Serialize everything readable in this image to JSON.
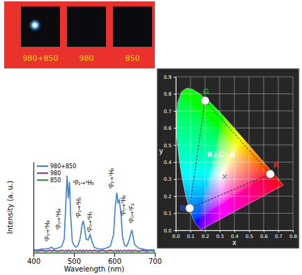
{
  "photo_panel": {
    "labels": [
      "980+850",
      "980",
      "850"
    ],
    "glow": [
      true,
      false,
      false
    ]
  },
  "chart_data": [
    {
      "type": "line",
      "x_label": "Wavelength (nm)",
      "y_label": "Intensity (a. u.)",
      "x": [
        400,
        410,
        420,
        430,
        440,
        445,
        450,
        460,
        470,
        476,
        480,
        483,
        486,
        489,
        492,
        496,
        500,
        505,
        510,
        515,
        520,
        523,
        526,
        530,
        535,
        540,
        545,
        550,
        560,
        570,
        580,
        590,
        598,
        602,
        606,
        609,
        612,
        616,
        620,
        625,
        630,
        635,
        640,
        643,
        646,
        650,
        660,
        670,
        680,
        690,
        700
      ],
      "series": [
        {
          "name": "980+850",
          "color": "#3f7fcf",
          "values": [
            0.03,
            0.03,
            0.04,
            0.04,
            0.05,
            0.06,
            0.04,
            0.05,
            0.07,
            0.15,
            0.55,
            0.85,
            0.6,
            0.78,
            0.4,
            0.12,
            0.08,
            0.06,
            0.08,
            0.15,
            0.3,
            0.35,
            0.28,
            0.15,
            0.14,
            0.2,
            0.12,
            0.06,
            0.04,
            0.04,
            0.05,
            0.07,
            0.2,
            0.5,
            0.66,
            0.55,
            0.58,
            0.45,
            0.18,
            0.08,
            0.07,
            0.12,
            0.2,
            0.25,
            0.18,
            0.09,
            0.05,
            0.04,
            0.03,
            0.03,
            0.03
          ]
        },
        {
          "name": "980",
          "color": "#8e3b8e",
          "values": [
            0.03,
            0.02,
            0.03,
            0.02,
            0.03,
            0.02,
            0.03,
            0.02,
            0.03,
            0.02,
            0.03,
            0.02,
            0.03,
            0.03,
            0.02,
            0.03,
            0.02,
            0.03,
            0.02,
            0.03,
            0.02,
            0.03,
            0.02,
            0.03,
            0.02,
            0.03,
            0.02,
            0.03,
            0.02,
            0.03,
            0.02,
            0.03,
            0.02,
            0.03,
            0.02,
            0.03,
            0.02,
            0.03,
            0.02,
            0.03,
            0.02,
            0.03,
            0.02,
            0.03,
            0.02,
            0.03,
            0.02,
            0.03,
            0.02,
            0.03,
            0.02
          ]
        },
        {
          "name": "850",
          "color": "#2f8f3a",
          "values": [
            0.02,
            0.01,
            0.02,
            0.01,
            0.02,
            0.01,
            0.02,
            0.01,
            0.02,
            0.01,
            0.02,
            0.01,
            0.02,
            0.02,
            0.01,
            0.02,
            0.01,
            0.02,
            0.01,
            0.02,
            0.01,
            0.02,
            0.01,
            0.02,
            0.01,
            0.02,
            0.01,
            0.02,
            0.01,
            0.02,
            0.01,
            0.02,
            0.01,
            0.02,
            0.01,
            0.02,
            0.01,
            0.02,
            0.01,
            0.02,
            0.01,
            0.02,
            0.01,
            0.02,
            0.01,
            0.02,
            0.01,
            0.02,
            0.01,
            0.02,
            0.01
          ]
        }
      ],
      "xlim": [
        400,
        700
      ],
      "xticks": [
        400,
        500,
        600,
        700
      ],
      "ylim": [
        0,
        1
      ],
      "tick_labels": "x",
      "legend": "upper left",
      "annotations": [
        {
          "text": "³P₁→³H₄",
          "x": 440,
          "y": 0.12
        },
        {
          "text": "³P₀→³H₄",
          "x": 468,
          "y": 0.25
        },
        {
          "text": "³P₂→³H₅",
          "x": 497,
          "y": 0.75
        },
        {
          "text": "³P₁→³H₅",
          "x": 518,
          "y": 0.38
        },
        {
          "text": "³P₀→³H₅",
          "x": 545,
          "y": 0.22
        },
        {
          "text": "³P₁→³H₆",
          "x": 598,
          "y": 0.7
        },
        {
          "text": "³P₀→³H₆",
          "x": 628,
          "y": 0.4
        },
        {
          "text": "³P₀→³F₂",
          "x": 648,
          "y": 0.32
        }
      ]
    },
    {
      "type": "scatter",
      "x_label": "x",
      "y_label": "y",
      "xlim": [
        0,
        0.8
      ],
      "ylim": [
        0,
        0.9
      ],
      "xticks": [
        {
          "value": 0,
          "label": "0.0"
        },
        0.1,
        0.2,
        0.3,
        0.4,
        0.5,
        0.6,
        0.7,
        0.8
      ],
      "yticks": [
        {
          "value": 0,
          "label": "0.0"
        },
        0.1,
        0.2,
        0.3,
        0.4,
        0.5,
        0.6,
        0.7,
        0.8,
        0.9
      ],
      "grid": true,
      "series": [
        {
          "type": "area",
          "x": [
            0.1741,
            0.1714,
            0.1644,
            0.1566,
            0.144,
            0.1241,
            0.1096,
            0.0913,
            0.0687,
            0.0454,
            0.0235,
            0.0082,
            0.0039,
            0.0139,
            0.0389,
            0.0743,
            0.1142,
            0.1547,
            0.2296,
            0.3016,
            0.3731,
            0.4441,
            0.5125,
            0.5752,
            0.627,
            0.6915,
            0.719,
            0.7347
          ],
          "values": [
            0.005,
            0.0051,
            0.0109,
            0.0177,
            0.0297,
            0.0578,
            0.0868,
            0.1327,
            0.2007,
            0.295,
            0.4127,
            0.5384,
            0.6548,
            0.7502,
            0.812,
            0.8338,
            0.8262,
            0.8059,
            0.7543,
            0.6923,
            0.6245,
            0.5547,
            0.4866,
            0.4242,
            0.3725,
            0.3083,
            0.2809,
            0.2653
          ]
        },
        {
          "type": "scatter",
          "marker": "circle",
          "line_style": "dashed",
          "color": "#ffffff",
          "x": [
            0.2,
            0.645,
            0.095
          ],
          "values": [
            0.76,
            0.33,
            0.13
          ],
          "labels": [
            "G",
            "R",
            "B"
          ],
          "colors": [
            "#2ea02e",
            "#e02424",
            "#2a3fd8"
          ]
        },
        {
          "type": "scatter",
          "marker": "x",
          "color": "#8a8a8a",
          "x": [
            0.335
          ],
          "values": [
            0.315
          ]
        }
      ],
      "annotations": [
        {
          "text": "R+G+B",
          "x": 0.31,
          "y": 0.43
        }
      ]
    }
  ]
}
